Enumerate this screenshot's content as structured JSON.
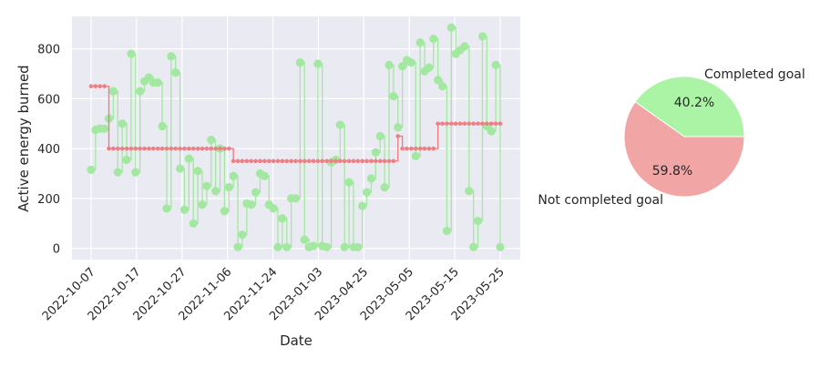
{
  "chart_data": [
    {
      "type": "line",
      "xlabel": "Date",
      "ylabel": "Active energy burned",
      "ylim": [
        -45,
        930
      ],
      "grid": true,
      "x_tick_labels": [
        "2022-10-07",
        "2022-10-17",
        "2022-10-27",
        "2022-11-06",
        "2022-11-24",
        "2023-01-03",
        "2023-04-25",
        "2023-05-05",
        "2023-05-15",
        "2023-05-25"
      ],
      "y_ticks": [
        0,
        200,
        400,
        600,
        800
      ],
      "colors": {
        "actual": "#a3e8a0",
        "goal": "#ee7f85",
        "background": "#eaeaf2"
      },
      "series": [
        {
          "role": "actual",
          "style": "stem",
          "values": [
            315,
            475,
            480,
            480,
            520,
            630,
            305,
            500,
            355,
            780,
            305,
            630,
            670,
            685,
            665,
            665,
            490,
            160,
            770,
            705,
            320,
            155,
            360,
            100,
            310,
            175,
            250,
            435,
            230,
            400,
            150,
            245,
            290,
            5,
            55,
            180,
            175,
            225,
            300,
            290,
            175,
            160,
            5,
            120,
            5,
            200,
            200,
            745,
            35,
            5,
            10,
            740,
            10,
            5,
            345,
            355,
            495,
            5,
            265,
            5,
            5,
            170,
            225,
            280,
            385,
            450,
            245,
            735,
            610,
            485,
            730,
            755,
            745,
            370,
            825,
            710,
            725,
            840,
            675,
            650,
            70,
            885,
            780,
            795,
            810,
            230,
            5,
            110,
            850,
            490,
            470,
            735,
            5
          ]
        },
        {
          "role": "goal",
          "style": "step",
          "values": [
            650,
            650,
            650,
            650,
            400,
            400,
            400,
            400,
            400,
            400,
            400,
            400,
            400,
            400,
            400,
            400,
            400,
            400,
            400,
            400,
            400,
            400,
            400,
            400,
            400,
            400,
            400,
            400,
            400,
            400,
            400,
            400,
            350,
            350,
            350,
            350,
            350,
            350,
            350,
            350,
            350,
            350,
            350,
            350,
            350,
            350,
            350,
            350,
            350,
            350,
            350,
            350,
            350,
            350,
            350,
            350,
            350,
            350,
            350,
            350,
            350,
            350,
            350,
            350,
            350,
            350,
            350,
            350,
            350,
            450,
            400,
            400,
            400,
            400,
            400,
            400,
            400,
            400,
            500,
            500,
            500,
            500,
            500,
            500,
            500,
            500,
            500,
            500,
            500,
            500,
            500,
            500,
            500
          ]
        }
      ]
    },
    {
      "type": "pie",
      "labels": [
        "Completed goal",
        "Not completed goal"
      ],
      "values": [
        40.2,
        59.8
      ],
      "value_labels": [
        "40.2%",
        "59.8%"
      ],
      "colors": [
        "#abf3a5",
        "#f2a5a5"
      ],
      "start_angle_deg": 0
    }
  ]
}
